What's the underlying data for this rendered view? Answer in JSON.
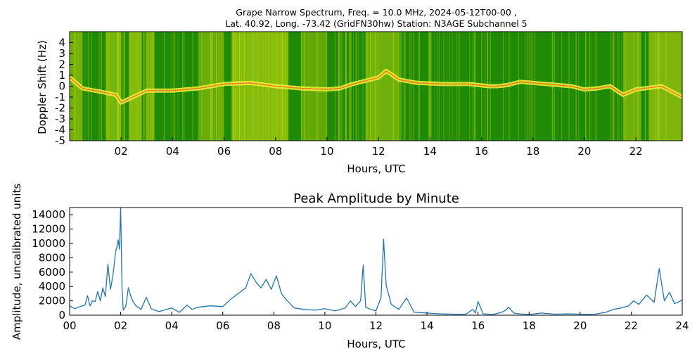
{
  "chart_data": [
    {
      "type": "heatmap",
      "title_line1": "Grape Narrow Spectrum, Freq. = 10.0 MHz, 2024-05-12T00-00 ,",
      "title_line2": "Lat.  40.92, Long. -73.42 (GridFN30hw) Station: N3AGE Subchannel 5",
      "xlabel": "Hours, UTC",
      "ylabel": "Doppler Shift (Hz)",
      "xlim": [
        0,
        23.8
      ],
      "ylim": [
        -5,
        5
      ],
      "xticks": [
        2,
        4,
        6,
        8,
        10,
        12,
        14,
        16,
        18,
        20,
        22
      ],
      "xtick_labels": [
        "02",
        "04",
        "06",
        "08",
        "10",
        "12",
        "14",
        "16",
        "18",
        "20",
        "22"
      ],
      "yticks": [
        4,
        3,
        2,
        1,
        0,
        -1,
        -2,
        -3,
        -4,
        -5
      ],
      "ytick_labels": [
        "4",
        "3",
        "2",
        "1",
        "0",
        "-1",
        "-2",
        "-3",
        "-4",
        "-5"
      ],
      "colors": {
        "background": "#1f8a06",
        "mid": "#c8dc10",
        "high": "#f2f23a",
        "peak": "#e8641a"
      },
      "trace": [
        {
          "h": 0.0,
          "d": 0.8
        },
        {
          "h": 0.5,
          "d": -0.2
        },
        {
          "h": 1.2,
          "d": -0.5
        },
        {
          "h": 1.8,
          "d": -0.8
        },
        {
          "h": 2.0,
          "d": -1.5
        },
        {
          "h": 3.0,
          "d": -0.4
        },
        {
          "h": 4.0,
          "d": -0.4
        },
        {
          "h": 5.0,
          "d": -0.2
        },
        {
          "h": 6.0,
          "d": 0.2
        },
        {
          "h": 7.0,
          "d": 0.3
        },
        {
          "h": 8.0,
          "d": 0.0
        },
        {
          "h": 9.0,
          "d": -0.2
        },
        {
          "h": 10.0,
          "d": -0.3
        },
        {
          "h": 10.5,
          "d": -0.2
        },
        {
          "h": 11.0,
          "d": 0.2
        },
        {
          "h": 11.5,
          "d": 0.5
        },
        {
          "h": 12.0,
          "d": 0.8
        },
        {
          "h": 12.3,
          "d": 1.4
        },
        {
          "h": 12.8,
          "d": 0.6
        },
        {
          "h": 13.5,
          "d": 0.3
        },
        {
          "h": 14.5,
          "d": 0.2
        },
        {
          "h": 15.5,
          "d": 0.2
        },
        {
          "h": 16.3,
          "d": 0.0
        },
        {
          "h": 16.6,
          "d": 0.0
        },
        {
          "h": 17.0,
          "d": 0.1
        },
        {
          "h": 17.5,
          "d": 0.4
        },
        {
          "h": 18.5,
          "d": 0.2
        },
        {
          "h": 19.5,
          "d": 0.0
        },
        {
          "h": 20.0,
          "d": -0.3
        },
        {
          "h": 20.5,
          "d": -0.2
        },
        {
          "h": 21.0,
          "d": 0.0
        },
        {
          "h": 21.5,
          "d": -0.8
        },
        {
          "h": 22.0,
          "d": -0.3
        },
        {
          "h": 23.0,
          "d": 0.0
        },
        {
          "h": 23.8,
          "d": -1.0
        }
      ],
      "bright_bands": [
        {
          "h0": 0.0,
          "h1": 0.5,
          "level": 0.5
        },
        {
          "h0": 1.4,
          "h1": 2.0,
          "level": 0.6
        },
        {
          "h0": 2.3,
          "h1": 2.8,
          "level": 0.8
        },
        {
          "h0": 3.0,
          "h1": 3.3,
          "level": 0.5
        },
        {
          "h0": 5.0,
          "h1": 6.0,
          "level": 0.4
        },
        {
          "h0": 6.3,
          "h1": 8.5,
          "level": 0.8
        },
        {
          "h0": 9.0,
          "h1": 10.0,
          "level": 0.3
        },
        {
          "h0": 11.5,
          "h1": 12.8,
          "level": 0.5
        },
        {
          "h0": 21.5,
          "h1": 22.2,
          "level": 0.5
        },
        {
          "h0": 22.5,
          "h1": 23.8,
          "level": 0.7
        }
      ]
    },
    {
      "type": "line",
      "title": "Peak Amplitude by Minute",
      "xlabel": "Hours, UTC",
      "ylabel": "Amplitude, uncalibrated units",
      "xlim": [
        0,
        24
      ],
      "ylim": [
        0,
        15000
      ],
      "xticks": [
        0,
        2,
        4,
        6,
        8,
        10,
        12,
        14,
        16,
        18,
        20,
        22,
        24
      ],
      "xtick_labels": [
        "00",
        "02",
        "04",
        "06",
        "08",
        "10",
        "12",
        "14",
        "16",
        "18",
        "20",
        "22",
        "24"
      ],
      "yticks": [
        0,
        2000,
        4000,
        6000,
        8000,
        10000,
        12000,
        14000
      ],
      "ytick_labels": [
        "0",
        "2000",
        "4000",
        "6000",
        "8000",
        "10000",
        "12000",
        "14000"
      ],
      "series": [
        {
          "name": "Peak Amplitude",
          "color": "#1f77b4",
          "x": [
            0,
            0.2,
            0.4,
            0.6,
            0.7,
            0.8,
            0.9,
            1.0,
            1.1,
            1.2,
            1.3,
            1.4,
            1.5,
            1.6,
            1.7,
            1.8,
            1.85,
            1.9,
            1.95,
            2.0,
            2.05,
            2.1,
            2.2,
            2.3,
            2.4,
            2.5,
            2.6,
            2.8,
            3.0,
            3.2,
            3.5,
            4.0,
            4.3,
            4.6,
            4.8,
            5.0,
            5.5,
            6.0,
            6.3,
            6.6,
            6.9,
            7.1,
            7.3,
            7.5,
            7.7,
            7.9,
            8.1,
            8.3,
            8.5,
            8.8,
            9.2,
            9.6,
            10.0,
            10.4,
            10.8,
            11.0,
            11.2,
            11.4,
            11.5,
            11.6,
            11.8,
            12.0,
            12.2,
            12.3,
            12.4,
            12.6,
            12.9,
            13.2,
            13.5,
            14.0,
            14.5,
            15.0,
            15.5,
            15.8,
            15.9,
            16.0,
            16.2,
            16.6,
            17.0,
            17.2,
            17.4,
            17.6,
            18.0,
            18.5,
            19.0,
            19.5,
            20.0,
            20.5,
            21.0,
            21.3,
            21.6,
            21.9,
            22.1,
            22.3,
            22.6,
            22.9,
            23.1,
            23.3,
            23.5,
            23.7,
            24.0
          ],
          "y": [
            1300,
            900,
            1200,
            1400,
            2700,
            1300,
            2000,
            1900,
            3300,
            2000,
            3800,
            2600,
            7100,
            3600,
            5600,
            8800,
            9500,
            10500,
            9200,
            15100,
            4000,
            700,
            1200,
            3800,
            2600,
            1800,
            1300,
            800,
            2500,
            900,
            500,
            1000,
            400,
            1400,
            800,
            1100,
            1300,
            1200,
            2200,
            3000,
            3800,
            5800,
            4600,
            3800,
            5000,
            3600,
            5500,
            3000,
            2100,
            1000,
            800,
            700,
            900,
            600,
            1000,
            2000,
            1200,
            2000,
            7000,
            1100,
            800,
            600,
            2500,
            10600,
            4200,
            1500,
            800,
            2400,
            400,
            300,
            200,
            150,
            100,
            800,
            300,
            1900,
            200,
            100,
            500,
            1100,
            300,
            200,
            100,
            300,
            150,
            200,
            150,
            100,
            400,
            800,
            1000,
            1300,
            2000,
            1500,
            2800,
            1800,
            6500,
            2000,
            3200,
            1600,
            2100
          ]
        }
      ]
    }
  ]
}
